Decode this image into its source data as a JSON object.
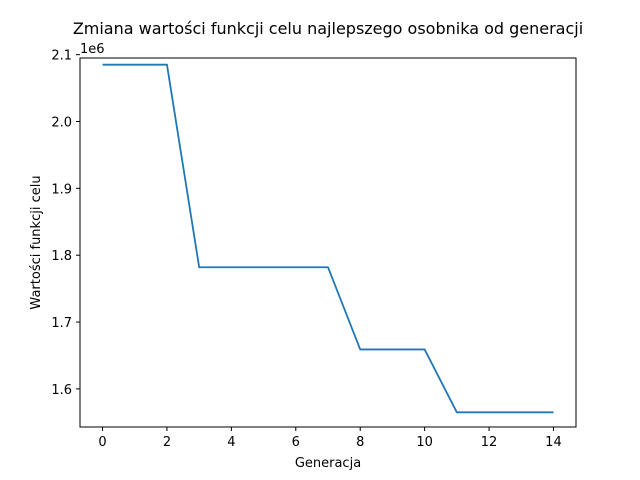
{
  "chart_data": {
    "type": "line",
    "title": "Zmiana wartości funkcji celu najlepszego osobnika od generacji",
    "xlabel": "Generacja",
    "ylabel": "Wartości funkcji celu",
    "y_offset_label": "1e6",
    "xlim": [
      -0.7,
      14.7
    ],
    "ylim": [
      1.543,
      2.095
    ],
    "xticks": [
      0,
      2,
      4,
      6,
      8,
      10,
      12,
      14
    ],
    "yticks": [
      1.6,
      1.7,
      1.8,
      1.9,
      2.0,
      2.1
    ],
    "series": [
      {
        "color": "#1f77b4",
        "x": [
          0,
          1,
          2,
          3,
          4,
          5,
          6,
          7,
          8,
          9,
          10,
          11,
          12,
          13,
          14
        ],
        "y": [
          2.085,
          2.085,
          2.085,
          1.782,
          1.782,
          1.782,
          1.782,
          1.782,
          1.659,
          1.659,
          1.659,
          1.565,
          1.565,
          1.565,
          1.565
        ]
      }
    ],
    "grid": false
  }
}
